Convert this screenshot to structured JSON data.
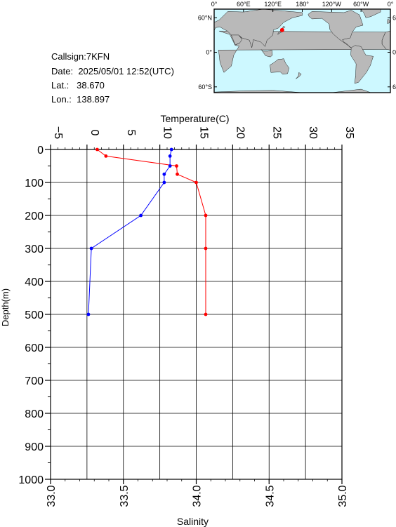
{
  "station": {
    "callsign_label": "Callsign:",
    "callsign": "7KFN",
    "date_label": "Date:",
    "date": "2025/05/01 12:52(UTC)",
    "lat_label": "Lat.:",
    "lat": "38.670",
    "lon_label": "Lon.:",
    "lon": "138.897"
  },
  "map": {
    "lon_ticks": [
      "0°",
      "60°E",
      "120°E",
      "180°",
      "120°W",
      "60°W",
      "0°"
    ],
    "lat_ticks": [
      "60°N",
      "0°",
      "60°S"
    ],
    "ocean_color": "#cdf8ff",
    "land_color": "#b9b9b9",
    "marker_color": "#ff0000"
  },
  "chart_data": {
    "type": "line",
    "ylabel": "Depth(m)",
    "y_ticks": [
      "0",
      "100",
      "200",
      "300",
      "400",
      "500",
      "600",
      "700",
      "800",
      "900",
      "1000"
    ],
    "ylim": [
      1000,
      0
    ],
    "top_axis": {
      "label": "Temperature(C)",
      "lim": [
        -5,
        35
      ],
      "ticks": [
        "-5",
        "0",
        "5",
        "10",
        "15",
        "20",
        "25",
        "30",
        "35"
      ]
    },
    "bottom_axis": {
      "label": "Salinity",
      "lim": [
        33.0,
        35.0
      ],
      "ticks": [
        "33.0",
        "33.5",
        "34.0",
        "34.5",
        "35.0"
      ]
    },
    "grid": true,
    "series": [
      {
        "axis": "temperature",
        "color": "#ff0000",
        "depth": [
          0,
          20,
          50,
          75,
          100,
          200,
          300,
          500
        ],
        "values": [
          1.4,
          2.6,
          12.3,
          12.4,
          15.0,
          16.3,
          16.3,
          16.3
        ]
      },
      {
        "axis": "salinity",
        "color": "#0000ff",
        "depth": [
          0,
          20,
          50,
          75,
          100,
          200,
          300,
          500
        ],
        "values": [
          33.83,
          33.82,
          33.82,
          33.78,
          33.78,
          33.62,
          33.28,
          33.26
        ]
      }
    ]
  }
}
